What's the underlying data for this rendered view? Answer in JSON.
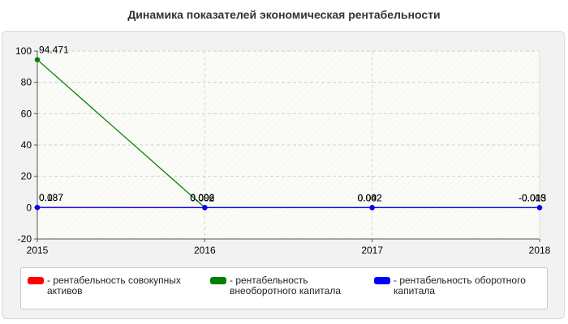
{
  "chart_data": {
    "type": "line",
    "title": "Динамика показателей экономическая рентабельности",
    "x": [
      "2015",
      "2016",
      "2017",
      "2018"
    ],
    "ylim": [
      -20,
      100
    ],
    "yticks": [
      "-20",
      "0",
      "20",
      "40",
      "60",
      "80",
      "100"
    ],
    "grid": true,
    "legend_position": "bottom",
    "series": [
      {
        "name": "рентабельность совокупных активов",
        "color": "#ff0000",
        "values": [
          0.087,
          0.002,
          0.002,
          -0.013
        ],
        "labels": [
          "0.087",
          "0.002",
          "0.002",
          "-0.013"
        ]
      },
      {
        "name": "рентабельность внеоборотного капитала",
        "color": "#008000",
        "values": [
          94.471,
          0.096,
          0.04,
          -0.005
        ],
        "labels": [
          "94.471",
          "0.096",
          "0.04",
          "-0.005"
        ]
      },
      {
        "name": "рентабельность оборотного капитала",
        "color": "#0000ff",
        "values": [
          0.137,
          0.002,
          0.002,
          -0.013
        ],
        "labels": [
          "0.137",
          "0.002",
          "0.002",
          "-0.013"
        ]
      }
    ]
  }
}
